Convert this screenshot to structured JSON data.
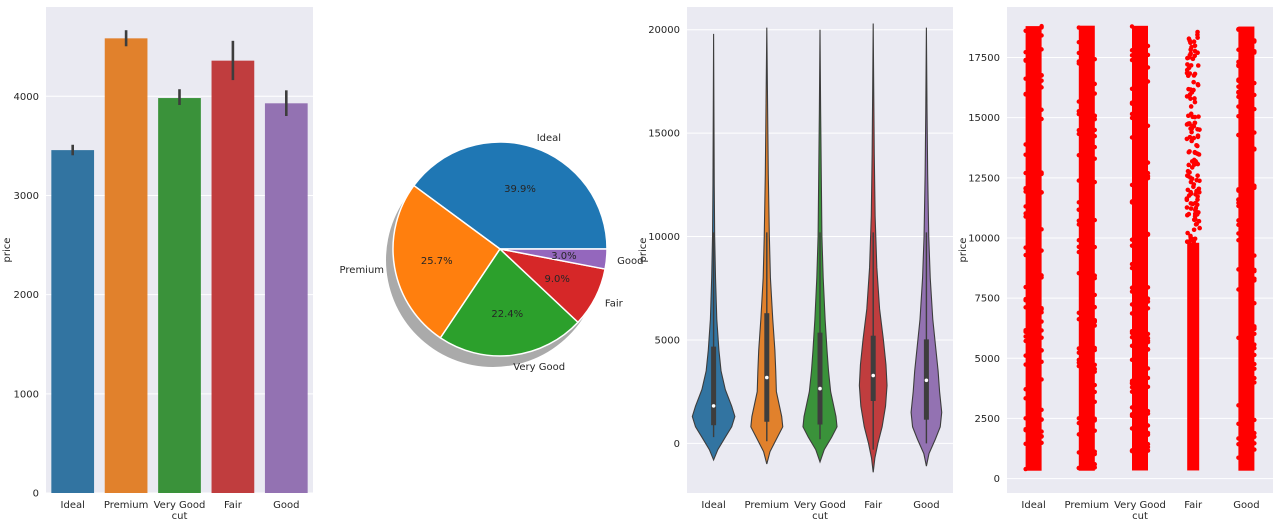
{
  "chart_data": [
    {
      "type": "bar",
      "categories": [
        "Ideal",
        "Premium",
        "Very Good",
        "Fair",
        "Good"
      ],
      "values": [
        3457,
        4584,
        3982,
        4359,
        3929
      ],
      "errors": [
        [
          3405,
          3511
        ],
        [
          4504,
          4666
        ],
        [
          3912,
          4071
        ],
        [
          4163,
          4559
        ],
        [
          3801,
          4060
        ]
      ],
      "colors": [
        "#3274a1",
        "#e1812c",
        "#3a923a",
        "#c03d3e",
        "#9372b2"
      ],
      "xlabel": "cut",
      "ylabel": "price",
      "yticks": [
        0,
        1000,
        2000,
        3000,
        4000
      ],
      "ylim": [
        0,
        4900
      ]
    },
    {
      "type": "pie",
      "labels": [
        "Ideal",
        "Premium",
        "Very Good",
        "Fair",
        "Good"
      ],
      "percent_labels": [
        "39.9%",
        "25.7%",
        "22.4%",
        "9.0%",
        "3.0%"
      ],
      "values": [
        39.9,
        25.7,
        22.4,
        9.0,
        3.0
      ],
      "colors": [
        "#1f77b4",
        "#ff7f0e",
        "#2ca02c",
        "#d62728",
        "#9467bd"
      ],
      "shadow": true
    },
    {
      "type": "violin",
      "categories": [
        "Ideal",
        "Premium",
        "Very Good",
        "Fair",
        "Good"
      ],
      "colors": [
        "#3274a1",
        "#e1812c",
        "#3a923a",
        "#c03d3e",
        "#9372b2"
      ],
      "xlabel": "cut",
      "ylabel": "price",
      "yticks": [
        0,
        5000,
        10000,
        15000,
        20000
      ],
      "ylim": [
        -2400,
        21100
      ],
      "ranges": [
        [
          -800,
          19800
        ],
        [
          -1000,
          20100
        ],
        [
          -900,
          20000
        ],
        [
          -1400,
          20300
        ],
        [
          -1100,
          20100
        ]
      ],
      "medians": [
        1810,
        3185,
        2648,
        3282,
        3050
      ],
      "quartiles": [
        [
          878,
          4678
        ],
        [
          1046,
          6294
        ],
        [
          912,
          5353
        ],
        [
          2050,
          5206
        ],
        [
          1145,
          5028
        ]
      ],
      "widths": [
        [
          [
            -800,
            0.0
          ],
          [
            -300,
            0.2
          ],
          [
            300,
            0.55
          ],
          [
            800,
            0.85
          ],
          [
            1300,
            1.0
          ],
          [
            1800,
            0.85
          ],
          [
            2600,
            0.55
          ],
          [
            3500,
            0.35
          ],
          [
            4500,
            0.25
          ],
          [
            6000,
            0.15
          ],
          [
            8000,
            0.09
          ],
          [
            10000,
            0.05
          ],
          [
            12500,
            0.03
          ],
          [
            16000,
            0.015
          ],
          [
            19800,
            0.0
          ]
        ],
        [
          [
            -1000,
            0.0
          ],
          [
            -400,
            0.15
          ],
          [
            300,
            0.5
          ],
          [
            800,
            0.75
          ],
          [
            1300,
            0.7
          ],
          [
            2500,
            0.45
          ],
          [
            3500,
            0.42
          ],
          [
            4500,
            0.38
          ],
          [
            6000,
            0.28
          ],
          [
            8000,
            0.17
          ],
          [
            10000,
            0.12
          ],
          [
            13000,
            0.07
          ],
          [
            16000,
            0.04
          ],
          [
            20100,
            0.0
          ]
        ],
        [
          [
            -900,
            0.0
          ],
          [
            -300,
            0.2
          ],
          [
            300,
            0.55
          ],
          [
            800,
            0.8
          ],
          [
            1300,
            0.75
          ],
          [
            2500,
            0.5
          ],
          [
            3500,
            0.4
          ],
          [
            4500,
            0.33
          ],
          [
            6000,
            0.24
          ],
          [
            8000,
            0.15
          ],
          [
            10000,
            0.09
          ],
          [
            13000,
            0.06
          ],
          [
            16000,
            0.03
          ],
          [
            20000,
            0.0
          ]
        ],
        [
          [
            -1400,
            0.0
          ],
          [
            -700,
            0.08
          ],
          [
            0,
            0.22
          ],
          [
            800,
            0.42
          ],
          [
            1800,
            0.58
          ],
          [
            2800,
            0.65
          ],
          [
            3800,
            0.6
          ],
          [
            5000,
            0.48
          ],
          [
            6500,
            0.3
          ],
          [
            8500,
            0.17
          ],
          [
            11000,
            0.09
          ],
          [
            14000,
            0.05
          ],
          [
            17000,
            0.025
          ],
          [
            20300,
            0.0
          ]
        ],
        [
          [
            -1100,
            0.0
          ],
          [
            -500,
            0.12
          ],
          [
            200,
            0.42
          ],
          [
            800,
            0.65
          ],
          [
            1500,
            0.72
          ],
          [
            2500,
            0.62
          ],
          [
            3500,
            0.55
          ],
          [
            4500,
            0.45
          ],
          [
            6000,
            0.3
          ],
          [
            8000,
            0.18
          ],
          [
            10000,
            0.11
          ],
          [
            13000,
            0.06
          ],
          [
            16000,
            0.03
          ],
          [
            20100,
            0.0
          ]
        ]
      ]
    },
    {
      "type": "scatter",
      "categories": [
        "Ideal",
        "Premium",
        "Very Good",
        "Fair",
        "Good"
      ],
      "xlabel": "cut",
      "ylabel": "price",
      "yticks": [
        0,
        2500,
        5000,
        7500,
        10000,
        12500,
        15000,
        17500
      ],
      "ylim": [
        -600,
        19600
      ],
      "ymin": [
        326,
        326,
        336,
        337,
        327
      ],
      "ymax": [
        18806,
        18823,
        18818,
        18574,
        18788
      ],
      "point_color": "#ff0000"
    }
  ]
}
